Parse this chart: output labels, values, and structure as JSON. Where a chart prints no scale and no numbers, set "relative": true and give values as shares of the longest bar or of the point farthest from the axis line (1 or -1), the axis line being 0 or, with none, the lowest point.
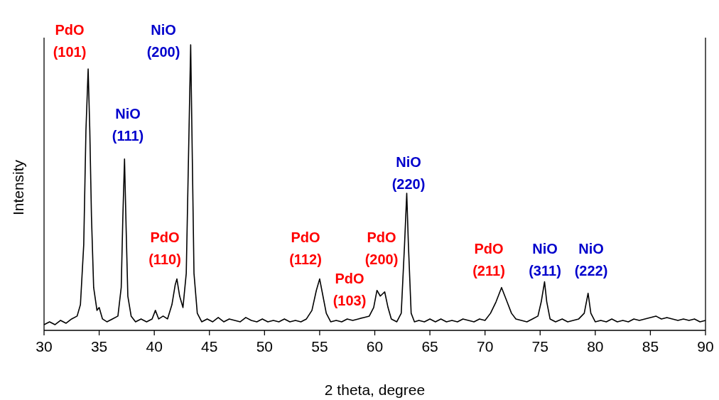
{
  "chart_data": {
    "type": "line",
    "xlabel": "2 theta, degree",
    "ylabel": "Intensity",
    "relative": true,
    "grid": false,
    "legend": false,
    "marker": "none",
    "line_style": "solid",
    "xlim": [
      30,
      90
    ],
    "xticks": [
      30,
      35,
      40,
      45,
      50,
      55,
      60,
      65,
      70,
      75,
      80,
      85,
      90
    ],
    "series": [
      {
        "color": "#000000",
        "x": [
          30,
          30.5,
          31,
          31.5,
          32,
          32.5,
          33,
          33.3,
          33.6,
          33.8,
          34.0,
          34.15,
          34.3,
          34.5,
          34.8,
          35.0,
          35.3,
          35.7,
          36.2,
          36.7,
          37.0,
          37.15,
          37.3,
          37.45,
          37.6,
          37.9,
          38.3,
          38.8,
          39.3,
          39.8,
          40.1,
          40.4,
          40.8,
          41.2,
          41.6,
          41.9,
          42.05,
          42.3,
          42.6,
          42.9,
          43.1,
          43.3,
          43.45,
          43.6,
          43.9,
          44.3,
          44.8,
          45.3,
          45.8,
          46.3,
          46.8,
          47.3,
          47.8,
          48.3,
          48.8,
          49.3,
          49.8,
          50.3,
          50.8,
          51.3,
          51.8,
          52.3,
          52.8,
          53.3,
          53.8,
          54.3,
          54.7,
          55.0,
          55.3,
          55.6,
          56.0,
          56.5,
          57.0,
          57.5,
          58.0,
          58.5,
          59.0,
          59.5,
          59.9,
          60.2,
          60.5,
          60.9,
          61.2,
          61.5,
          62.0,
          62.4,
          62.7,
          62.9,
          63.05,
          63.3,
          63.6,
          64.0,
          64.5,
          65.0,
          65.5,
          66,
          66.5,
          67,
          67.5,
          68,
          68.5,
          69,
          69.5,
          70,
          70.5,
          71.0,
          71.5,
          72.0,
          72.4,
          72.8,
          73.3,
          73.8,
          74.3,
          74.8,
          75.1,
          75.4,
          75.6,
          75.9,
          76.4,
          77,
          77.5,
          78,
          78.5,
          79.0,
          79.35,
          79.6,
          80,
          80.5,
          81,
          81.5,
          82,
          82.5,
          83,
          83.5,
          84,
          84.5,
          85,
          85.5,
          86,
          86.5,
          87,
          87.5,
          88,
          88.5,
          89,
          89.5,
          90
        ],
        "values": [
          0.02,
          0.03,
          0.02,
          0.035,
          0.025,
          0.04,
          0.05,
          0.09,
          0.3,
          0.7,
          0.915,
          0.7,
          0.4,
          0.15,
          0.07,
          0.08,
          0.04,
          0.03,
          0.04,
          0.05,
          0.15,
          0.4,
          0.6,
          0.35,
          0.12,
          0.05,
          0.03,
          0.04,
          0.03,
          0.04,
          0.07,
          0.04,
          0.05,
          0.04,
          0.09,
          0.16,
          0.18,
          0.12,
          0.08,
          0.2,
          0.6,
          1,
          0.6,
          0.2,
          0.06,
          0.03,
          0.04,
          0.03,
          0.045,
          0.03,
          0.04,
          0.035,
          0.03,
          0.045,
          0.035,
          0.03,
          0.04,
          0.03,
          0.035,
          0.03,
          0.04,
          0.03,
          0.035,
          0.03,
          0.04,
          0.07,
          0.14,
          0.18,
          0.12,
          0.06,
          0.03,
          0.035,
          0.03,
          0.04,
          0.035,
          0.04,
          0.045,
          0.05,
          0.08,
          0.14,
          0.12,
          0.135,
          0.08,
          0.04,
          0.03,
          0.06,
          0.3,
          0.48,
          0.3,
          0.06,
          0.03,
          0.035,
          0.03,
          0.04,
          0.03,
          0.04,
          0.03,
          0.035,
          0.03,
          0.04,
          0.035,
          0.03,
          0.04,
          0.035,
          0.06,
          0.1,
          0.15,
          0.1,
          0.06,
          0.04,
          0.035,
          0.03,
          0.04,
          0.05,
          0.1,
          0.17,
          0.1,
          0.04,
          0.03,
          0.04,
          0.03,
          0.035,
          0.04,
          0.06,
          0.13,
          0.06,
          0.03,
          0.035,
          0.03,
          0.04,
          0.03,
          0.035,
          0.03,
          0.04,
          0.035,
          0.04,
          0.045,
          0.05,
          0.04,
          0.045,
          0.04,
          0.035,
          0.04,
          0.035,
          0.04,
          0.03,
          0.035
        ]
      }
    ],
    "annotations": [
      "PdO (101)",
      "NiO (200)",
      "NiO (111)",
      "PdO (110)",
      "PdO (112)",
      "PdO (103)",
      "PdO (200)",
      "NiO (220)",
      "PdO (211)",
      "NiO (311)",
      "NiO (222)"
    ]
  }
}
